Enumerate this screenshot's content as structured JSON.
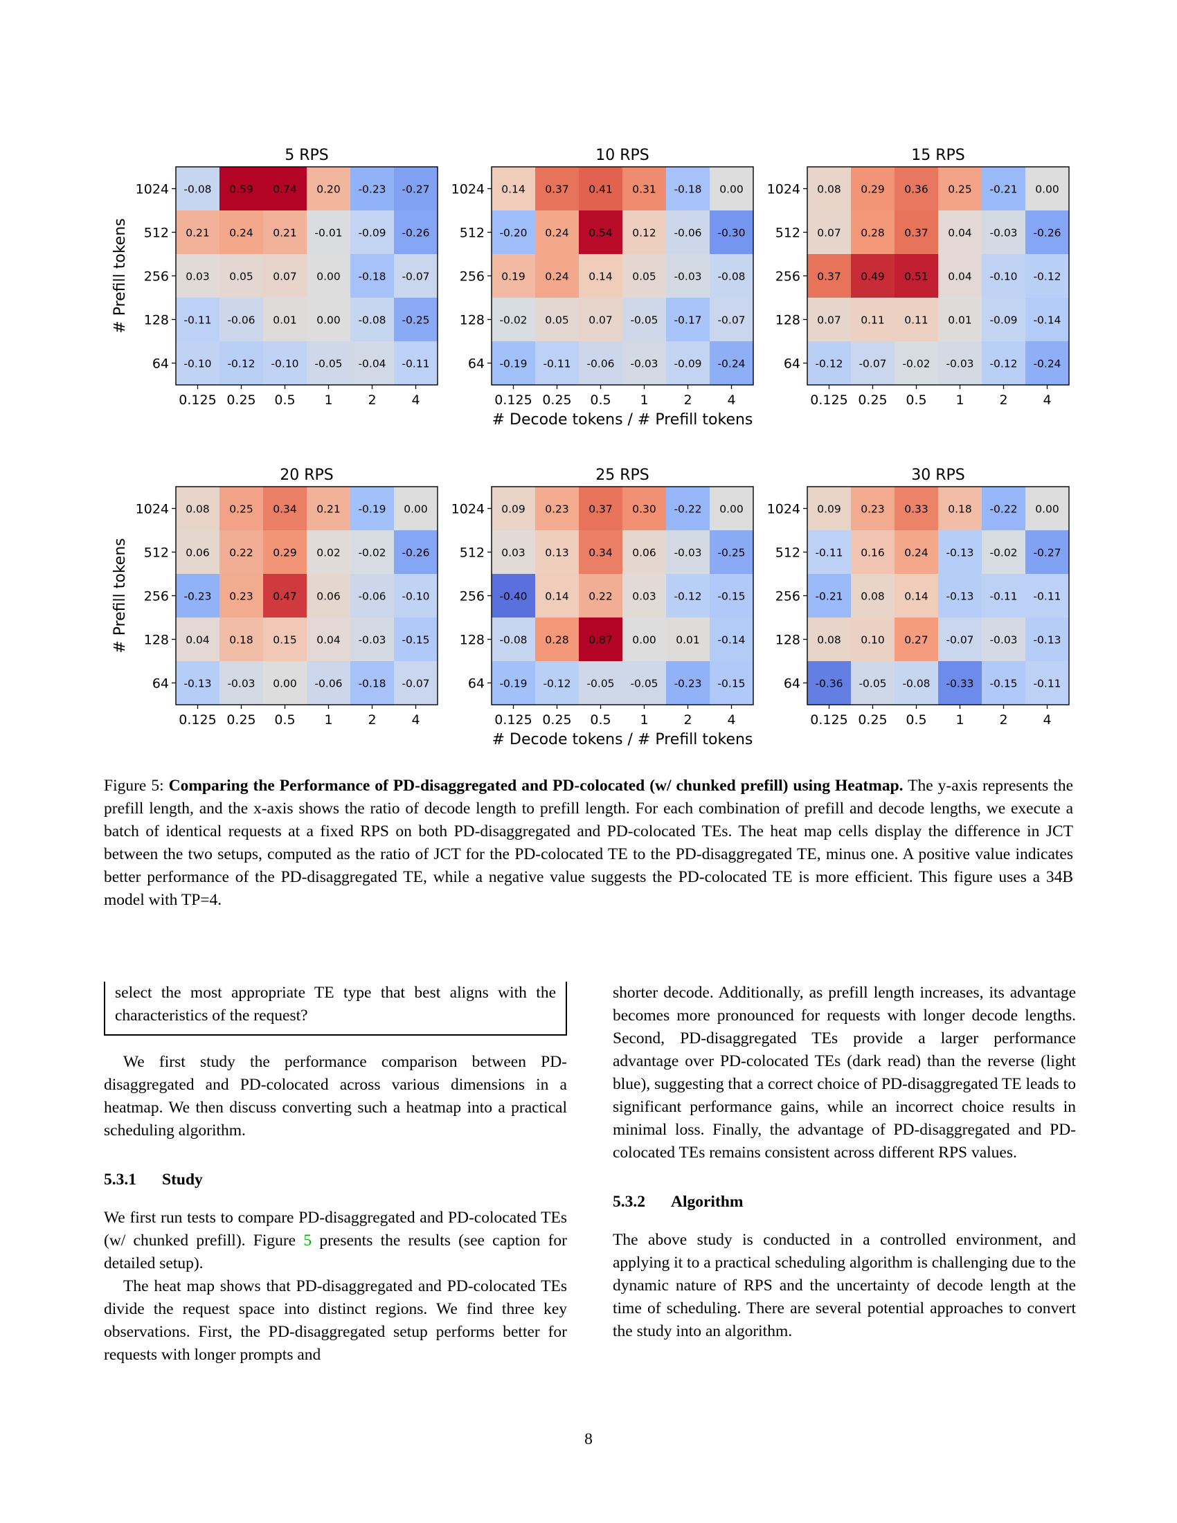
{
  "chart_data": [
    {
      "type": "heatmap",
      "title": "5 RPS",
      "ylabel": "# Prefill tokens",
      "xlabel": "",
      "x": [
        "0.125",
        "0.25",
        "0.5",
        "1",
        "2",
        "4"
      ],
      "y": [
        "1024",
        "512",
        "256",
        "128",
        "64"
      ],
      "values": [
        [
          -0.08,
          0.59,
          0.74,
          0.2,
          -0.23,
          -0.27
        ],
        [
          0.21,
          0.24,
          0.21,
          -0.01,
          -0.09,
          -0.26
        ],
        [
          0.03,
          0.05,
          0.07,
          0.0,
          -0.18,
          -0.07
        ],
        [
          -0.11,
          -0.06,
          0.01,
          0.0,
          -0.08,
          -0.25
        ],
        [
          -0.1,
          -0.12,
          -0.1,
          -0.05,
          -0.04,
          -0.11
        ]
      ]
    },
    {
      "type": "heatmap",
      "title": "10 RPS",
      "ylabel": "",
      "xlabel": "# Decode tokens / # Prefill tokens",
      "x": [
        "0.125",
        "0.25",
        "0.5",
        "1",
        "2",
        "4"
      ],
      "y": [
        "1024",
        "512",
        "256",
        "128",
        "64"
      ],
      "values": [
        [
          0.14,
          0.37,
          0.41,
          0.31,
          -0.18,
          0.0
        ],
        [
          -0.2,
          0.24,
          0.54,
          0.12,
          -0.06,
          -0.3
        ],
        [
          0.19,
          0.24,
          0.14,
          0.05,
          -0.03,
          -0.08
        ],
        [
          -0.02,
          0.05,
          0.07,
          -0.05,
          -0.17,
          -0.07
        ],
        [
          -0.19,
          -0.11,
          -0.06,
          -0.03,
          -0.09,
          -0.24
        ]
      ]
    },
    {
      "type": "heatmap",
      "title": "15 RPS",
      "ylabel": "",
      "xlabel": "",
      "x": [
        "0.125",
        "0.25",
        "0.5",
        "1",
        "2",
        "4"
      ],
      "y": [
        "1024",
        "512",
        "256",
        "128",
        "64"
      ],
      "values": [
        [
          0.08,
          0.29,
          0.36,
          0.25,
          -0.21,
          0.0
        ],
        [
          0.07,
          0.28,
          0.37,
          0.04,
          -0.03,
          -0.26
        ],
        [
          0.37,
          0.49,
          0.51,
          0.04,
          -0.1,
          -0.12
        ],
        [
          0.07,
          0.11,
          0.11,
          0.01,
          -0.09,
          -0.14
        ],
        [
          -0.12,
          -0.07,
          -0.02,
          -0.03,
          -0.12,
          -0.24
        ]
      ]
    },
    {
      "type": "heatmap",
      "title": "20 RPS",
      "ylabel": "# Prefill tokens",
      "xlabel": "",
      "x": [
        "0.125",
        "0.25",
        "0.5",
        "1",
        "2",
        "4"
      ],
      "y": [
        "1024",
        "512",
        "256",
        "128",
        "64"
      ],
      "values": [
        [
          0.08,
          0.25,
          0.34,
          0.21,
          -0.19,
          0.0
        ],
        [
          0.06,
          0.22,
          0.29,
          0.02,
          -0.02,
          -0.26
        ],
        [
          -0.23,
          0.23,
          0.47,
          0.06,
          -0.06,
          -0.1
        ],
        [
          0.04,
          0.18,
          0.15,
          0.04,
          -0.03,
          -0.15
        ],
        [
          -0.13,
          -0.03,
          0.0,
          -0.06,
          -0.18,
          -0.07
        ]
      ]
    },
    {
      "type": "heatmap",
      "title": "25 RPS",
      "ylabel": "",
      "xlabel": "# Decode tokens / # Prefill tokens",
      "x": [
        "0.125",
        "0.25",
        "0.5",
        "1",
        "2",
        "4"
      ],
      "y": [
        "1024",
        "512",
        "256",
        "128",
        "64"
      ],
      "values": [
        [
          0.09,
          0.23,
          0.37,
          0.3,
          -0.22,
          0.0
        ],
        [
          0.03,
          0.13,
          0.34,
          0.06,
          -0.03,
          -0.25
        ],
        [
          -0.4,
          0.14,
          0.22,
          0.03,
          -0.12,
          -0.15
        ],
        [
          -0.08,
          0.28,
          0.87,
          0.0,
          0.01,
          -0.14
        ],
        [
          -0.19,
          -0.12,
          -0.05,
          -0.05,
          -0.23,
          -0.15
        ]
      ]
    },
    {
      "type": "heatmap",
      "title": "30 RPS",
      "ylabel": "",
      "xlabel": "",
      "x": [
        "0.125",
        "0.25",
        "0.5",
        "1",
        "2",
        "4"
      ],
      "y": [
        "1024",
        "512",
        "256",
        "128",
        "64"
      ],
      "values": [
        [
          0.09,
          0.23,
          0.33,
          0.18,
          -0.22,
          0.0
        ],
        [
          -0.11,
          0.16,
          0.24,
          -0.13,
          -0.02,
          -0.27
        ],
        [
          -0.21,
          0.08,
          0.14,
          -0.13,
          -0.11,
          -0.11
        ],
        [
          0.08,
          0.1,
          0.27,
          -0.07,
          -0.03,
          -0.13
        ],
        [
          -0.36,
          -0.05,
          -0.08,
          -0.33,
          -0.15,
          -0.11
        ]
      ]
    }
  ],
  "caption": {
    "label": "Figure 5: ",
    "title": "Comparing the Performance of PD-disaggregated and PD-colocated (w/ chunked prefill) using Heatmap.",
    "body": " The y-axis represents the prefill length, and the x-axis shows the ratio of decode length to prefill length. For each combination of prefill and decode lengths, we execute a batch of identical requests at a fixed RPS on both PD-disaggregated and PD-colocated TEs. The heat map cells display the difference in JCT between the two setups, computed as the ratio of JCT for the PD-colocated TE to the PD-disaggregated TE, minus one. A positive value indicates better performance of the PD-disaggregated TE, while a negative value suggests the PD-colocated TE is more efficient. This figure uses a 34B model with TP=4."
  },
  "left_column": {
    "question_box": "select the most appropriate TE type that best aligns with the characteristics of the request?",
    "intro": "We first study the performance comparison between PD-disaggregated and PD-colocated across various dimensions in a heatmap. We then discuss converting such a heatmap into a practical scheduling algorithm.",
    "section_531_number": "5.3.1",
    "section_531_title": "Study",
    "study_p1_before": "We first run tests to compare PD-disaggregated and PD-colocated TEs (w/ chunked prefill). Figure ",
    "study_p1_ref": "5",
    "study_p1_after": " presents the results (see caption for detailed setup).",
    "study_p2": "The heat map shows that PD-disaggregated and PD-colocated TEs divide the request space into distinct regions. We find three key observations. First, the PD-disaggregated setup performs better for requests with longer prompts and"
  },
  "right_column": {
    "study_cont": "shorter decode. Additionally, as prefill length increases, its advantage becomes more pronounced for requests with longer decode lengths. Second, PD-disaggregated TEs provide a larger performance advantage over PD-colocated TEs (dark read) than the reverse (light blue), suggesting that a correct choice of PD-disaggregated TE leads to significant performance gains, while an incorrect choice results in minimal loss. Finally, the advantage of PD-disaggregated and PD-colocated TEs remains consistent across different RPS values.",
    "section_532_number": "5.3.2",
    "section_532_title": "Algorithm",
    "algo_p1": "The above study is conducted in a controlled environment, and applying it to a practical scheduling algorithm is challenging due to the dynamic nature of RPS and the uncertainty of decode length at the time of scheduling. There are several potential approaches to convert the study into an algorithm."
  },
  "page_number": "8"
}
